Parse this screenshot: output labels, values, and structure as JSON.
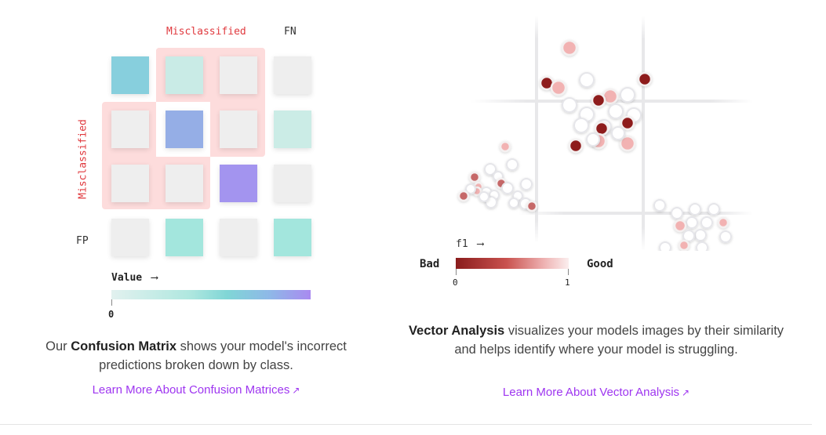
{
  "confusion_matrix": {
    "top_label": "Misclassified",
    "side_label": "Misclassified",
    "fn_label": "FN",
    "fp_label": "FP",
    "legend_title": "Value",
    "legend_arrow": "⟶",
    "legend_min": "0",
    "rows": [
      {
        "cells": [
          {
            "color": "#87cfdd"
          },
          {
            "color": "#c9ebe6"
          },
          {
            "color": "#eeeeee"
          },
          {
            "color": "#eeeeee"
          }
        ]
      },
      {
        "cells": [
          {
            "color": "#eeeeee"
          },
          {
            "color": "#95aee6"
          },
          {
            "color": "#eeeeee"
          },
          {
            "color": "#cbece6"
          }
        ]
      },
      {
        "cells": [
          {
            "color": "#eeeeee"
          },
          {
            "color": "#eeeeee"
          },
          {
            "color": "#a394ef"
          },
          {
            "color": "#eeeeee"
          }
        ]
      },
      {
        "cells": [
          {
            "color": "#eeeeee"
          },
          {
            "color": "#a3e6dd"
          },
          {
            "color": "#eeeeee"
          },
          {
            "color": "#a3e6dd"
          }
        ]
      }
    ]
  },
  "confusion_text": {
    "prefix": "Our ",
    "bold": "Confusion Matrix",
    "suffix": " shows your model's incorrect predictions broken down by class.",
    "link": "Learn More About Confusion Matrices",
    "link_icon": "arrow-up-right-icon"
  },
  "vector_analysis": {
    "axis_label": "f1",
    "axis_arrow": "⟶",
    "bad_label": "Bad",
    "good_label": "Good",
    "scale_min": "0",
    "scale_max": "1"
  },
  "vector_text": {
    "bold": "Vector Analysis",
    "suffix": " visualizes your models images by their similarity and helps identify where your model is struggling.",
    "link": "Learn More About Vector Analysis",
    "link_icon": "arrow-up-right-icon"
  },
  "colors": {
    "highlight": "#fddcdc",
    "accent_red": "#e0393e",
    "link": "#9e35f0",
    "point_bad": "#8e1d1d",
    "point_mid": "#c66767",
    "point_good": "#f2b2b2",
    "point_empty": "#ffffff"
  }
}
